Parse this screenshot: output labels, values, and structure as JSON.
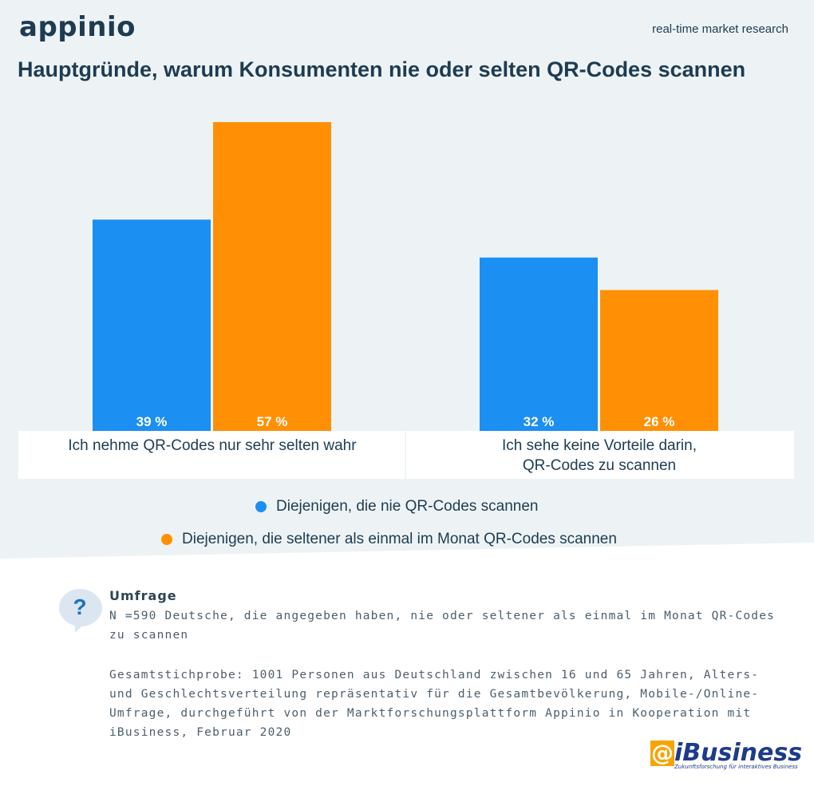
{
  "header": {
    "logo": "appinio",
    "tagline": "real-time market research",
    "title": "Hauptgründe, warum Konsumenten nie oder selten QR-Codes scannen"
  },
  "chart_data": {
    "type": "bar",
    "title": "Hauptgründe, warum Konsumenten nie oder selten QR-Codes scannen",
    "categories": [
      "Ich nehme QR-Codes nur sehr selten wahr",
      "Ich sehe keine Vorteile darin, QR-Codes zu scannen"
    ],
    "series": [
      {
        "name": "Diejenigen, die nie QR-Codes scannen",
        "values": [
          39,
          32
        ],
        "color": "#1b8ff2"
      },
      {
        "name": "Diejenigen, die seltener als einmal im Monat QR-Codes scannen",
        "values": [
          57,
          26
        ],
        "color": "#ff9005"
      }
    ],
    "value_suffix": " %",
    "ylim": [
      0,
      60
    ],
    "grid": false,
    "legend_position": "bottom"
  },
  "legend": [
    {
      "label": "Diejenigen, die nie QR-Codes scannen",
      "color": "#1b8ff2"
    },
    {
      "label": "Diejenigen, die seltener als einmal im Monat QR-Codes scannen",
      "color": "#ff9005"
    }
  ],
  "survey": {
    "title": "Umfrage",
    "icon": "question-icon",
    "icon_label": "?",
    "sample": "N =590 Deutsche, die angegeben haben, nie oder seltener als einmal im Monat QR-Codes zu scannen",
    "details": "Gesamtstichprobe: 1001 Personen aus Deutschland zwischen 16 und 65 Jahren, Alters- und Geschlechtsverteilung repräsentativ für die Gesamtbevölkerung, Mobile-/Online-Umfrage, durchgeführt von der Marktforschungsplattform Appinio in Kooperation mit iBusiness, Februar 2020"
  },
  "footer_logo": {
    "at": "@",
    "name": "iBusiness",
    "sub": "Zukunftsforschung für interaktives Business"
  }
}
